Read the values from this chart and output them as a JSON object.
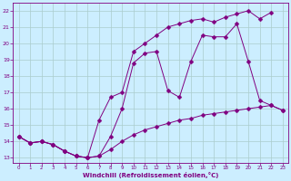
{
  "xlabel": "Windchill (Refroidissement éolien,°C)",
  "background_color": "#cceeff",
  "line_color": "#800080",
  "grid_color": "#aaddcc",
  "xlim": [
    -0.5,
    23.5
  ],
  "ylim": [
    12.7,
    22.5
  ],
  "xticks": [
    0,
    1,
    2,
    3,
    4,
    5,
    6,
    7,
    8,
    9,
    10,
    11,
    12,
    13,
    14,
    15,
    16,
    17,
    18,
    19,
    20,
    21,
    22,
    23
  ],
  "yticks": [
    13,
    14,
    15,
    16,
    17,
    18,
    19,
    20,
    21,
    22
  ],
  "series1_x": [
    0,
    1,
    2,
    3,
    4,
    5,
    6,
    7,
    8,
    9,
    10,
    11,
    12,
    13,
    14,
    15,
    16,
    17,
    18,
    19,
    20,
    21,
    22
  ],
  "series1_y": [
    14.3,
    13.9,
    14.0,
    13.8,
    13.4,
    13.1,
    13.0,
    15.3,
    16.7,
    17.0,
    19.5,
    20.0,
    20.5,
    21.0,
    21.2,
    21.4,
    21.5,
    21.3,
    21.6,
    21.8,
    22.0,
    21.5,
    21.9
  ],
  "series2_x": [
    0,
    1,
    2,
    3,
    4,
    5,
    6,
    7,
    8,
    9,
    10,
    11,
    12,
    13,
    14,
    15,
    16,
    17,
    18,
    19,
    20,
    21,
    22,
    23
  ],
  "series2_y": [
    14.3,
    13.9,
    14.0,
    13.8,
    13.4,
    13.1,
    13.0,
    13.1,
    13.5,
    14.0,
    14.4,
    14.7,
    14.9,
    15.1,
    15.3,
    15.4,
    15.6,
    15.7,
    15.8,
    15.9,
    16.0,
    16.1,
    16.2,
    15.9
  ],
  "series3_x": [
    0,
    1,
    2,
    3,
    4,
    5,
    6,
    7,
    8,
    9,
    10,
    11,
    12,
    13,
    14,
    15,
    16,
    17,
    18,
    19,
    20,
    21,
    22,
    23
  ],
  "series3_y": [
    14.3,
    13.9,
    14.0,
    13.8,
    13.4,
    13.1,
    13.0,
    13.1,
    14.3,
    16.0,
    18.8,
    19.4,
    19.5,
    17.1,
    16.7,
    18.9,
    20.5,
    20.4,
    20.4,
    21.2,
    18.9,
    16.5,
    16.2,
    15.9
  ],
  "markersize": 2.5
}
